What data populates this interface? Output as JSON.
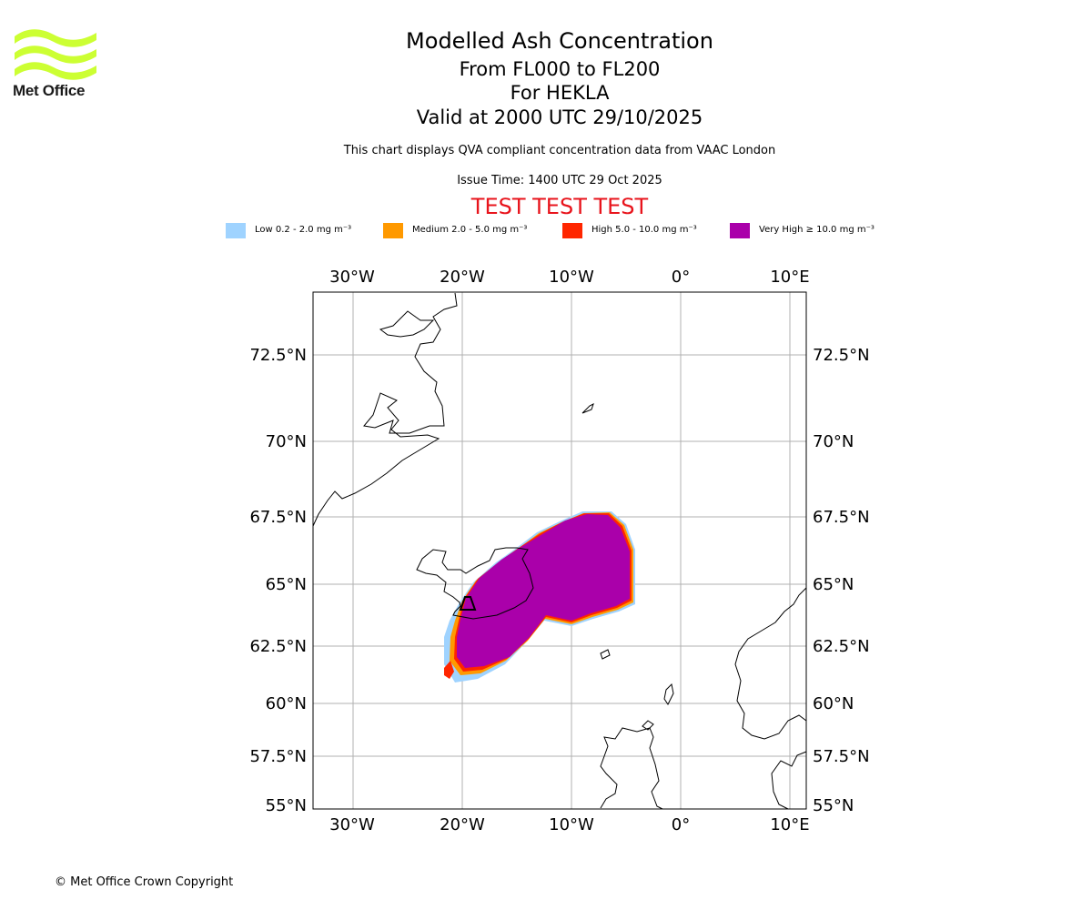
{
  "logo": {
    "text": "Met Office",
    "color": "#ccff33"
  },
  "header": {
    "title": "Modelled Ash Concentration",
    "levels": "From FL000 to FL200",
    "volcano": "For HEKLA",
    "valid": "Valid at 2000 UTC 29/10/2025",
    "description": "This chart displays QVA compliant concentration data from VAAC London",
    "issue_time": "Issue Time: 1400 UTC 29 Oct 2025",
    "test_banner": "TEST TEST TEST"
  },
  "legend": [
    {
      "label": "Low 0.2 - 2.0 mg m⁻³",
      "color": "#9fd3ff"
    },
    {
      "label": "Medium 2.0 - 5.0 mg m⁻³",
      "color": "#ff9900"
    },
    {
      "label": "High 5.0 - 10.0 mg m⁻³",
      "color": "#ff2600"
    },
    {
      "label": "Very High ≥ 10.0 mg m⁻³",
      "color": "#aa00aa"
    }
  ],
  "map": {
    "lon_labels": [
      "30°W",
      "20°W",
      "10°W",
      "0°",
      "10°E"
    ],
    "lat_labels": [
      "72.5°N",
      "70°N",
      "67.5°N",
      "65°N",
      "62.5°N",
      "60°N",
      "57.5°N",
      "55°N"
    ]
  },
  "footer": {
    "copyright": "© Met Office Crown Copyright"
  }
}
